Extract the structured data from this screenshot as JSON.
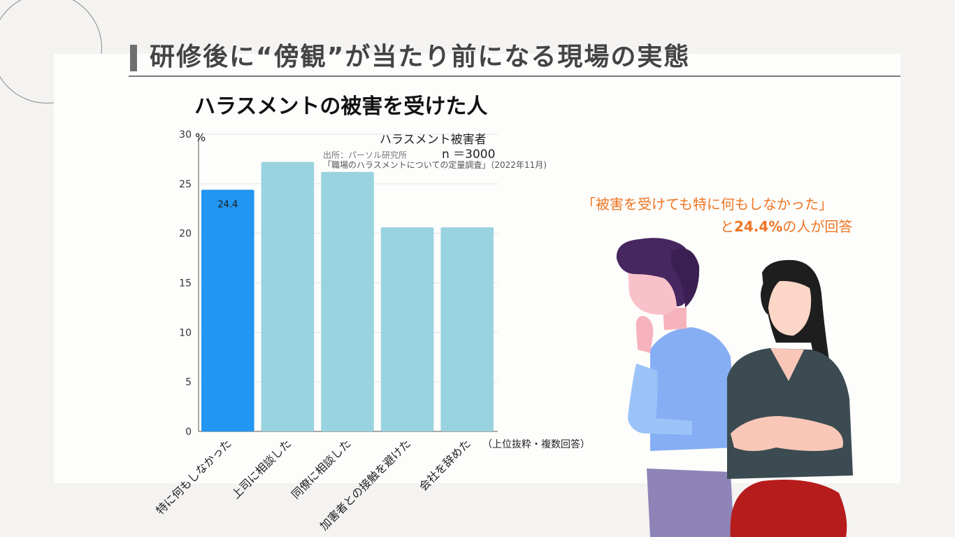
{
  "page_title": "研修後に“傍観”が当たり前になる現場の実態",
  "chart_data": {
    "type": "bar",
    "title": "ハラスメントの被害を受けた人",
    "unit": "%",
    "categories": [
      "特に何もしなかった",
      "上司に相談した",
      "同僚に相談した",
      "加害者との接触を避けた",
      "会社を辞めた"
    ],
    "series": [
      {
        "name": "ハラスメント被害者",
        "values": [
          24.4,
          27.2,
          26.2,
          20.6,
          20.6
        ]
      }
    ],
    "data_labels": [
      "24.4",
      "",
      "",
      "",
      ""
    ],
    "highlight_index": 0,
    "yticks": [
      0,
      5,
      10,
      15,
      20,
      25,
      30
    ],
    "ylim": [
      0,
      30
    ],
    "grid": true,
    "sample_size": "n ＝3000",
    "source_line1": "出所：パーソル研究所",
    "source_line2": "「職場のハラスメントについての定量調査」（2022年11月)",
    "note": "（上位抜粋・複数回答）",
    "colors": {
      "highlight": "#2196f3",
      "bar": "#9ad3e0",
      "grid": "#e3e3e3",
      "axis": "#555555"
    }
  },
  "callout": {
    "line1": "「被害を受けても特に何もしなかった」",
    "line2_prefix": "と",
    "line2_value": "24.4%",
    "line2_suffix": "の人が回答"
  },
  "illustration": {
    "description_icons": [
      "thinking-man-icon",
      "woman-arms-crossed-icon"
    ]
  }
}
